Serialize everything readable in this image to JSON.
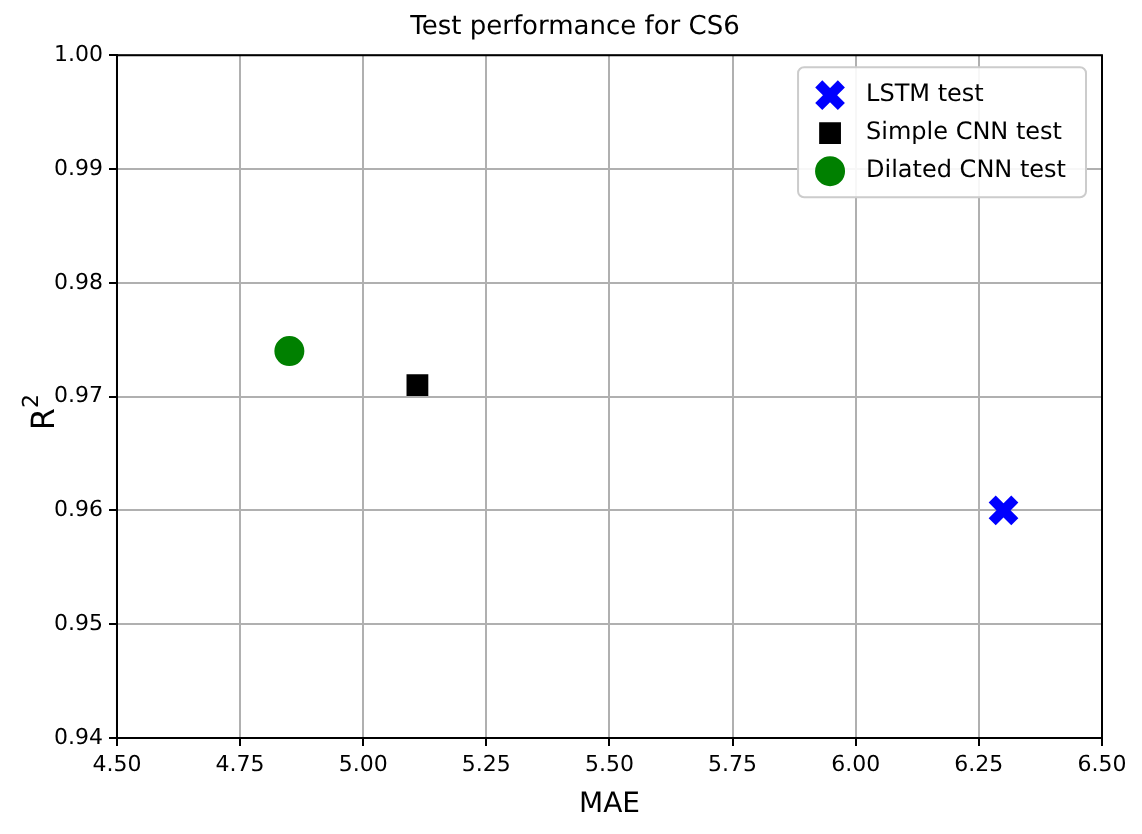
{
  "chart_data": {
    "type": "scatter",
    "title": "Test performance for CS6",
    "xlabel": "MAE",
    "ylabel": "R$^{2}$",
    "xlim": [
      4.5,
      6.5
    ],
    "xticks": [
      {
        "value": 4.5,
        "label": "4.50"
      },
      {
        "value": 4.75,
        "label": "4.75"
      },
      {
        "value": 5,
        "label": "5.00"
      },
      {
        "value": 5.25,
        "label": "5.25"
      },
      {
        "value": 5.5,
        "label": "5.50"
      },
      {
        "value": 5.75,
        "label": "5.75"
      },
      {
        "value": 6,
        "label": "6.00"
      },
      {
        "value": 6.25,
        "label": "6.25"
      },
      {
        "value": 6.5,
        "label": "6.50"
      }
    ],
    "ylim": [
      0.94,
      1.0
    ],
    "yticks": [
      {
        "value": 0.94,
        "label": "0.94"
      },
      {
        "value": 0.95,
        "label": "0.95"
      },
      {
        "value": 0.96,
        "label": "0.96"
      },
      {
        "value": 0.97,
        "label": "0.97"
      },
      {
        "value": 0.98,
        "label": "0.98"
      },
      {
        "value": 0.99,
        "label": "0.99"
      },
      {
        "value": 1.0,
        "label": "1.00"
      }
    ],
    "grid": true,
    "legend": "top right",
    "series": [
      {
        "name": "LSTM test",
        "color": "#0000ff",
        "marker": "cross",
        "x": [
          6.3
        ],
        "values": [
          0.96
        ]
      },
      {
        "name": "Simple CNN test",
        "color": "#000000",
        "marker": "square",
        "x": [
          5.11
        ],
        "values": [
          0.971
        ]
      },
      {
        "name": "Dilated CNN test",
        "color": "#008000",
        "marker": "circle",
        "x": [
          4.85
        ],
        "values": [
          0.974
        ]
      }
    ]
  }
}
